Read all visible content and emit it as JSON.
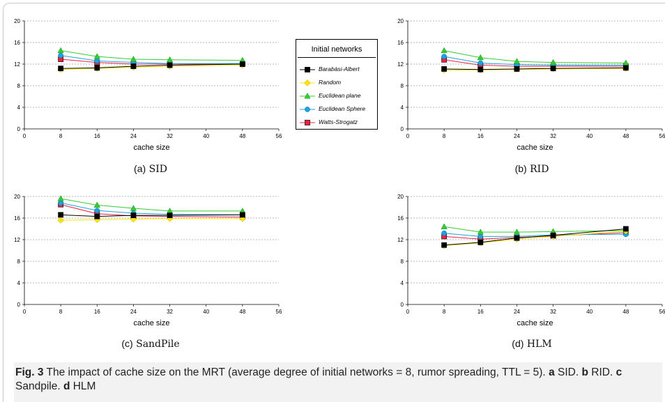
{
  "figure": {
    "caption_label": "Fig. 3",
    "caption_text": "The impact of cache size on the MRT (average degree of initial networks = 8, rumor spreading, TTL = 5).",
    "caption_parts": [
      {
        "label": "a",
        "text": "SID."
      },
      {
        "label": "b",
        "text": "RID."
      },
      {
        "label": "c",
        "text": "Sandpile."
      },
      {
        "label": "d",
        "text": "HLM"
      }
    ]
  },
  "legend": {
    "title": "Initial networks",
    "entries": [
      {
        "name": "Barabàsi-Albert",
        "color": "#000000",
        "marker": "square"
      },
      {
        "name": "Random",
        "color": "#ffe600",
        "marker": "diamond"
      },
      {
        "name": "Euclidean plane",
        "color": "#33cc33",
        "marker": "triangle"
      },
      {
        "name": "Euclidean Sphere",
        "color": "#1aa3e0",
        "marker": "circle"
      },
      {
        "name": "Watts-Strogatz",
        "color": "#ee2244",
        "marker": "square"
      }
    ]
  },
  "chart_data": [
    {
      "type": "line",
      "sublabel": "(a)",
      "subtitle": "SID",
      "xlabel": "cache size",
      "ylabel": "",
      "xlim": [
        0,
        56
      ],
      "ylim": [
        0,
        20
      ],
      "xticks": [
        "0",
        "8",
        "16",
        "24",
        "32",
        "40",
        "48",
        "56"
      ],
      "yticks": [
        "0",
        "4",
        "8",
        "12",
        "16",
        "20"
      ],
      "grid": "horizontal",
      "x": [
        8,
        16,
        24,
        32,
        48
      ],
      "series": [
        {
          "name": "Barabàsi-Albert",
          "values": [
            11.2,
            11.3,
            11.6,
            11.8,
            12.0
          ]
        },
        {
          "name": "Random",
          "values": [
            11.0,
            11.2,
            11.4,
            11.6,
            11.8
          ]
        },
        {
          "name": "Euclidean plane",
          "values": [
            14.5,
            13.4,
            12.9,
            12.8,
            12.7
          ]
        },
        {
          "name": "Euclidean Sphere",
          "values": [
            13.6,
            12.6,
            12.3,
            12.1,
            12.1
          ]
        },
        {
          "name": "Watts-Strogatz",
          "values": [
            12.9,
            12.3,
            12.0,
            12.0,
            12.0
          ]
        }
      ]
    },
    {
      "type": "line",
      "sublabel": "(b)",
      "subtitle": "RID",
      "xlabel": "cache size",
      "ylabel": "",
      "xlim": [
        0,
        56
      ],
      "ylim": [
        0,
        20
      ],
      "xticks": [
        "0",
        "8",
        "16",
        "24",
        "32",
        "40",
        "48",
        "56"
      ],
      "yticks": [
        "0",
        "4",
        "8",
        "12",
        "16",
        "20"
      ],
      "grid": "horizontal",
      "x": [
        8,
        16,
        24,
        32,
        48
      ],
      "series": [
        {
          "name": "Barabàsi-Albert",
          "values": [
            11.1,
            11.0,
            11.1,
            11.2,
            11.3
          ]
        },
        {
          "name": "Random",
          "values": [
            10.9,
            10.9,
            11.0,
            11.1,
            11.2
          ]
        },
        {
          "name": "Euclidean plane",
          "values": [
            14.5,
            13.2,
            12.5,
            12.3,
            12.2
          ]
        },
        {
          "name": "Euclidean Sphere",
          "values": [
            13.4,
            12.2,
            11.9,
            11.8,
            11.8
          ]
        },
        {
          "name": "Watts-Strogatz",
          "values": [
            12.8,
            11.8,
            11.6,
            11.6,
            11.6
          ]
        }
      ]
    },
    {
      "type": "line",
      "sublabel": "(c)",
      "subtitle": "SandPile",
      "xlabel": "cache size",
      "ylabel": "",
      "xlim": [
        0,
        56
      ],
      "ylim": [
        0,
        20
      ],
      "xticks": [
        "0",
        "8",
        "16",
        "24",
        "32",
        "40",
        "48",
        "56"
      ],
      "yticks": [
        "0",
        "4",
        "8",
        "12",
        "16",
        "20"
      ],
      "grid": "horizontal",
      "x": [
        8,
        16,
        24,
        32,
        48
      ],
      "series": [
        {
          "name": "Barabàsi-Albert",
          "values": [
            16.6,
            16.3,
            16.5,
            16.5,
            16.6
          ]
        },
        {
          "name": "Random",
          "values": [
            15.6,
            15.7,
            15.8,
            15.9,
            15.9
          ]
        },
        {
          "name": "Euclidean plane",
          "values": [
            19.6,
            18.4,
            17.8,
            17.3,
            17.3
          ]
        },
        {
          "name": "Euclidean Sphere",
          "values": [
            18.8,
            17.4,
            16.9,
            16.7,
            16.6
          ]
        },
        {
          "name": "Watts-Strogatz",
          "values": [
            18.5,
            16.8,
            16.4,
            16.3,
            16.2
          ]
        }
      ]
    },
    {
      "type": "line",
      "sublabel": "(d)",
      "subtitle": "HLM",
      "xlabel": "cache size",
      "ylabel": "",
      "xlim": [
        0,
        56
      ],
      "ylim": [
        0,
        20
      ],
      "xticks": [
        "0",
        "8",
        "16",
        "24",
        "32",
        "40",
        "48",
        "56"
      ],
      "yticks": [
        "0",
        "4",
        "8",
        "12",
        "16",
        "20"
      ],
      "grid": "horizontal",
      "x": [
        8,
        16,
        24,
        32,
        48
      ],
      "series": [
        {
          "name": "Barabàsi-Albert",
          "values": [
            11.0,
            11.5,
            12.3,
            12.8,
            14.0
          ]
        },
        {
          "name": "Random",
          "values": [
            10.9,
            11.4,
            12.1,
            12.6,
            13.6
          ]
        },
        {
          "name": "Euclidean plane",
          "values": [
            14.4,
            13.4,
            13.4,
            13.5,
            13.7
          ]
        },
        {
          "name": "Euclidean Sphere",
          "values": [
            13.2,
            12.6,
            12.6,
            12.9,
            13.0
          ]
        },
        {
          "name": "Watts-Strogatz",
          "values": [
            12.6,
            12.1,
            12.4,
            12.7,
            13.3
          ]
        }
      ]
    }
  ]
}
